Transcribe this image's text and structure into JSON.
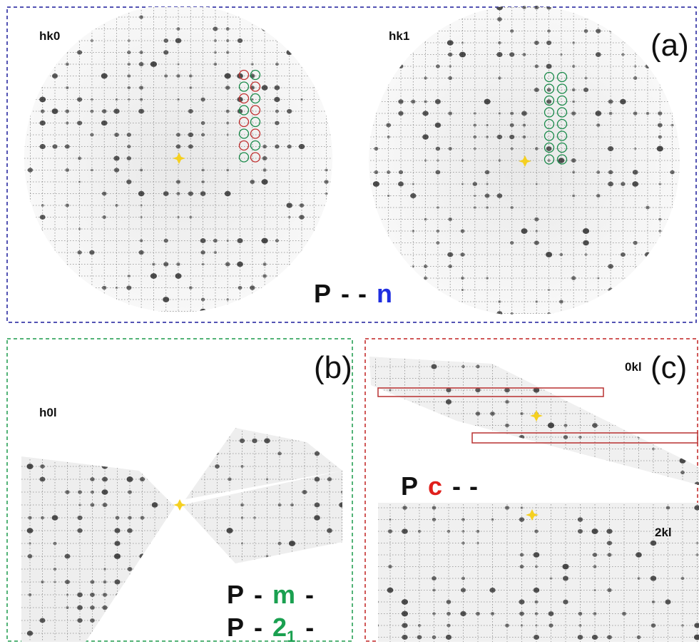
{
  "panel_a": {
    "label": "(a)",
    "pattern_labels": [
      "hk0",
      "hk1"
    ],
    "symbol": [
      "P",
      "-",
      "-",
      "n"
    ]
  },
  "panel_b": {
    "label": "(b)",
    "pattern_labels": [
      "h0l"
    ],
    "symbols": [
      [
        "P",
        "-",
        "m",
        "-"
      ],
      [
        "P",
        "-",
        "2",
        "1",
        "-"
      ]
    ]
  },
  "panel_c": {
    "label": "(c)",
    "pattern_labels": [
      "0kl",
      "2kl"
    ],
    "symbol": [
      "P",
      "c",
      "-",
      "-"
    ]
  }
}
